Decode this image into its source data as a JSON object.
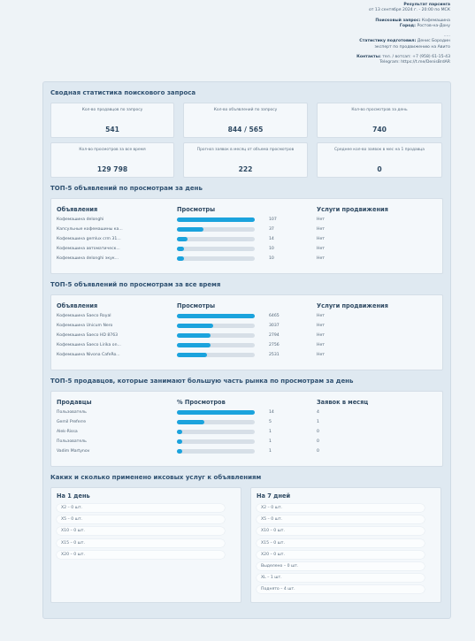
{
  "header": {
    "title": "Результат парсинга",
    "date": "от 13 сентября 2024 г. - 20:00 по МСК",
    "query_label": "Поисковый запрос:",
    "query": "Кофемашина",
    "city_label": "Город:",
    "city": "Ростов-на-Дону",
    "dots": ".....",
    "author_label": "Статистику подготовил:",
    "author": "Денис Бородин",
    "author_role": "эксперт по продвижению на Авито",
    "contacts_label": "Контакты:",
    "contacts": "тел. / вотсап: +7 (958) 61-15-43",
    "telegram": "Telegram: https://t.me/DenisBrdAR"
  },
  "summary": {
    "title": "Сводная статистика поискового запроса",
    "cards": [
      {
        "label": "Кол-во продавцов по запросу",
        "value": "541"
      },
      {
        "label": "Кол-во объявлений по запросу",
        "value": "844 / 565"
      },
      {
        "label": "Кол-во просмотров за день",
        "value": "740"
      },
      {
        "label": "Кол-во просмотров за все время",
        "value": "129 798"
      },
      {
        "label": "Прогноз заявок в месяц от объема просмотров",
        "value": "222"
      },
      {
        "label": "Среднее кол-во заявок в мес на 1 продавца",
        "value": "0"
      }
    ]
  },
  "tables": [
    {
      "title": "ТОП-5 объявлений по просмотрам за день",
      "columns": [
        "Объявления",
        "Просмотры",
        "Услуги продвижения"
      ],
      "rows": [
        {
          "name": "Кофемашина delonghi",
          "value": 107,
          "extra": "Нет"
        },
        {
          "name": "Капсульные кофемашины ка...",
          "value": 37,
          "extra": "Нет"
        },
        {
          "name": "Кофемашина gemlux crm 31...",
          "value": 14,
          "extra": "Нет"
        },
        {
          "name": "Кофемашина автоматическ...",
          "value": 10,
          "extra": "Нет"
        },
        {
          "name": "Кофемашина delonghi экук...",
          "value": 10,
          "extra": "Нет"
        }
      ]
    },
    {
      "title": "ТОП-5 объявлений по просмотрам за все время",
      "columns": [
        "Объявления",
        "Просмотры",
        "Услуги продвижения"
      ],
      "rows": [
        {
          "name": "Кофемашина Saeco Royal",
          "value": 6465,
          "extra": "Нет"
        },
        {
          "name": "Кофемашина Unicum Nero",
          "value": 3037,
          "extra": "Нет"
        },
        {
          "name": "Кофемашина Saeco HD 8763",
          "value": 2794,
          "extra": "Нет"
        },
        {
          "name": "Кофемашина Saeco Lirika on...",
          "value": 2756,
          "extra": "Нет"
        },
        {
          "name": "Кофемашина Nivona CafeRo...",
          "value": 2531,
          "extra": "Нет"
        }
      ]
    },
    {
      "title": "ТОП-5 продавцов, которые занимают большую часть рынка по просмотрам за день",
      "columns": [
        "Продавцы",
        "% Просмотров",
        "Заявок в месяц"
      ],
      "rows": [
        {
          "name": "Пользователь",
          "value": 14,
          "extra": "4"
        },
        {
          "name": "Gemil Preferre",
          "value": 5,
          "extra": "1"
        },
        {
          "name": "Alek-Rissa",
          "value": 1,
          "extra": "0"
        },
        {
          "name": "Пользователь",
          "value": 1,
          "extra": "0"
        },
        {
          "name": "Vadim Martynov",
          "value": 1,
          "extra": "0"
        }
      ]
    }
  ],
  "services": {
    "title": "Каких и сколько применено иксовых услуг к объявлениям",
    "panels": [
      {
        "title": "На 1 день",
        "items": [
          "X2 – 0 шт.",
          "X5 – 0 шт.",
          "X10 – 0 шт.",
          "X15 – 0 шт.",
          "X20 – 0 шт."
        ]
      },
      {
        "title": "На 7 дней",
        "items": [
          "X2 – 0 шт.",
          "X5 – 0 шт.",
          "X10 – 0 шт.",
          "X15 – 0 шт.",
          "X20 – 0 шт.",
          "Выделено – 0 шт.",
          "XL – 1 шт.",
          "Поднято – 4 шт."
        ]
      }
    ]
  }
}
